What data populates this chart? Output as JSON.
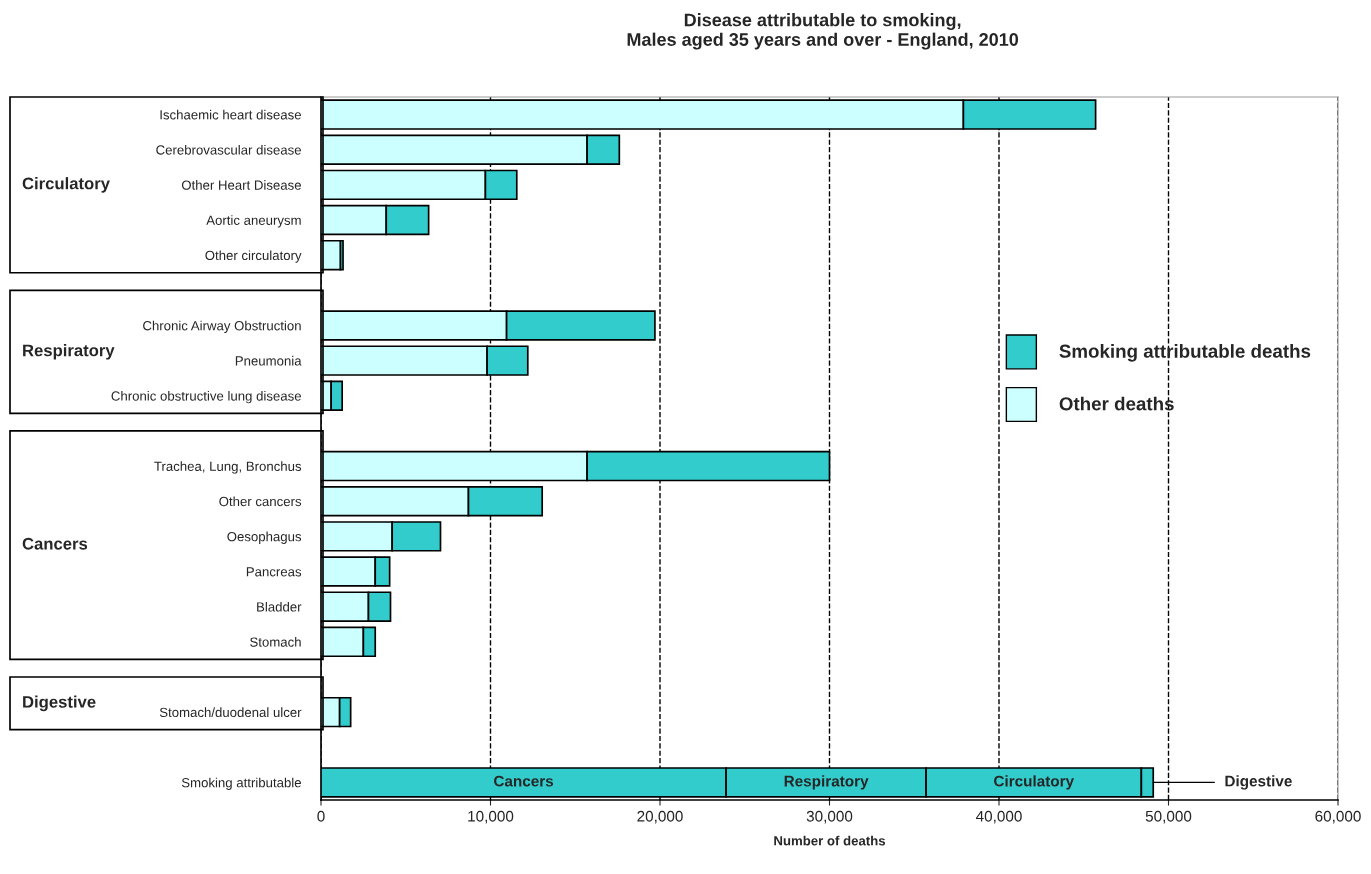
{
  "chart_data": {
    "type": "bar",
    "orientation": "horizontal",
    "stacked": true,
    "title": "Disease attributable to smoking,\nMales aged 35 years and over - England, 2010",
    "xlabel": "Number of deaths",
    "categories": [
      "Ischaemic heart disease",
      "Cerebrovascular disease",
      "Other Heart Disease",
      "Aortic aneurysm",
      "Other circulatory",
      null,
      "Chronic Airway Obstruction",
      "Pneumonia",
      "Chronic obstructive lung disease",
      null,
      "Trachea, Lung, Bronchus",
      "Other cancers",
      "Oesophagus",
      "Pancreas",
      "Bladder",
      "Stomach",
      null,
      "Stomach/duodenal ulcer",
      null,
      "Smoking attributable"
    ],
    "series": [
      {
        "name": "Other deaths",
        "color": "#ccffff",
        "values": [
          37900,
          15700,
          9700,
          3850,
          1150,
          null,
          10950,
          9800,
          600,
          null,
          15700,
          8700,
          4200,
          3200,
          2800,
          2500,
          null,
          1100,
          null,
          null
        ]
      },
      {
        "name": "Smoking attributable deaths",
        "color": "#33cccc",
        "values": [
          7800,
          1900,
          1850,
          2500,
          150,
          null,
          8750,
          2400,
          650,
          null,
          14300,
          4350,
          2850,
          850,
          1300,
          700,
          null,
          650,
          null,
          null
        ]
      },
      {
        "color": "#33cccc",
        "values": [
          null,
          null,
          null,
          null,
          null,
          null,
          null,
          null,
          null,
          null,
          null,
          null,
          null,
          null,
          null,
          null,
          null,
          null,
          null,
          23900
        ]
      },
      {
        "color": "#33cccc",
        "values": [
          null,
          null,
          null,
          null,
          null,
          null,
          null,
          null,
          null,
          null,
          null,
          null,
          null,
          null,
          null,
          null,
          null,
          null,
          null,
          11800
        ]
      },
      {
        "color": "#33cccc",
        "values": [
          null,
          null,
          null,
          null,
          null,
          null,
          null,
          null,
          null,
          null,
          null,
          null,
          null,
          null,
          null,
          null,
          null,
          null,
          null,
          12700
        ]
      },
      {
        "color": "#33cccc",
        "values": [
          null,
          null,
          null,
          null,
          null,
          null,
          null,
          null,
          null,
          null,
          null,
          null,
          null,
          null,
          null,
          null,
          null,
          null,
          null,
          700
        ]
      }
    ],
    "xlim": [
      0,
      60000
    ],
    "xticks": [
      0,
      {
        "value": 10000,
        "label": "10,000"
      },
      {
        "value": 20000,
        "label": "20,000"
      },
      {
        "value": 30000,
        "label": "30,000"
      },
      {
        "value": 40000,
        "label": "40,000"
      },
      {
        "value": 50000,
        "label": "50,000"
      },
      {
        "value": 60000,
        "label": "60,000"
      }
    ],
    "grid": "x",
    "legend": "right",
    "annotations": [
      "Circulatory",
      "Respiratory",
      "Cancers",
      "Digestive",
      {
        "text": "Cancers",
        "x": 11950,
        "y": "Smoking attributable"
      },
      {
        "text": "Respiratory",
        "x": 29800,
        "y": "Smoking attributable"
      },
      {
        "text": "Circulatory",
        "x": 42050,
        "y": "Smoking attributable"
      },
      "Digestive"
    ]
  }
}
